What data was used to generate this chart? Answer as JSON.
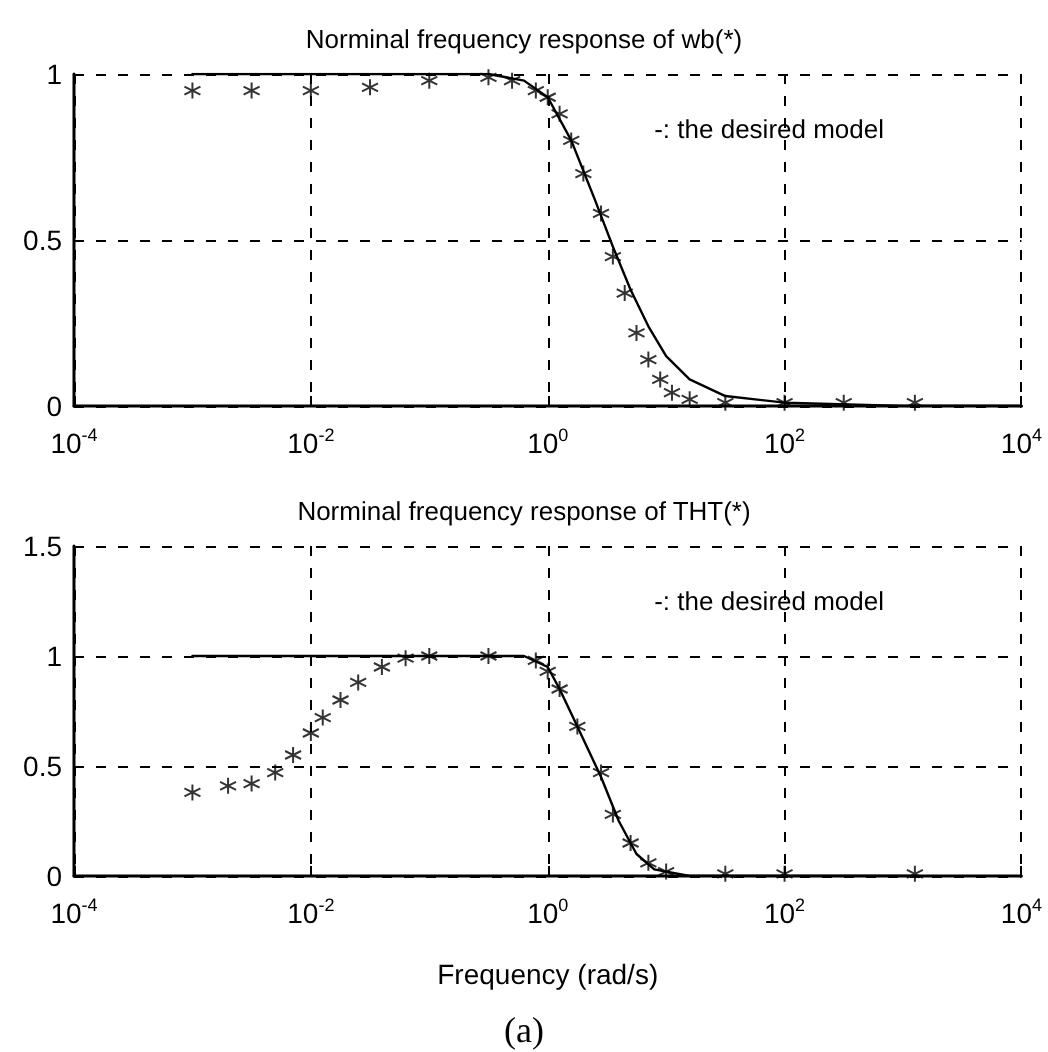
{
  "chart_data": [
    {
      "type": "line",
      "title": "Norminal frequency response of wb(*)",
      "annotations": [
        "-: the desired model"
      ],
      "log": "x",
      "grid": true,
      "xlim": [
        0.0001,
        10000
      ],
      "xticks": [
        {
          "value": 0.0001,
          "label": "10$^{-4}$"
        },
        {
          "value": 0.01,
          "label": "10$^{-2}$"
        },
        {
          "value": 1,
          "label": "10$^{0}$"
        },
        {
          "value": 100,
          "label": "10$^{2}$"
        },
        {
          "value": 10000,
          "label": "10$^{4}$"
        }
      ],
      "ylim": [
        0,
        1
      ],
      "yticks": [
        0,
        0.5,
        1
      ],
      "series": [
        {
          "type": "line",
          "color": "#000000",
          "marker": "none",
          "line_style": "solid",
          "x": [
            0.001,
            0.316,
            0.631,
            1,
            1.58,
            2.51,
            3.55,
            5.01,
            7.08,
            10,
            15.8,
            31.6,
            100,
            1000,
            10000
          ],
          "values": [
            1,
            1,
            0.98,
            0.93,
            0.8,
            0.62,
            0.48,
            0.35,
            0.24,
            0.15,
            0.08,
            0.03,
            0.01,
            0,
            0
          ]
        },
        {
          "type": "scatter",
          "color": "#000000",
          "marker": "cross",
          "x": [
            0.001,
            0.00316,
            0.01,
            0.0316,
            0.1,
            0.316,
            0.5,
            0.794,
            1,
            1.26,
            1.58,
            2,
            2.82,
            3.55,
            4.47,
            5.62,
            7.08,
            8.91,
            11.2,
            15.8,
            31.6,
            100,
            316,
            1260
          ],
          "values": [
            0.95,
            0.95,
            0.95,
            0.96,
            0.98,
            0.99,
            0.98,
            0.95,
            0.93,
            0.88,
            0.8,
            0.7,
            0.58,
            0.45,
            0.34,
            0.22,
            0.14,
            0.08,
            0.04,
            0.02,
            0.01,
            0.01,
            0.01,
            0.01
          ]
        }
      ]
    },
    {
      "type": "line",
      "title": "Norminal frequency response of THT(*)",
      "xlabel": "Frequency (rad/s)",
      "annotations": [
        "-: the desired model",
        "(a)"
      ],
      "log": "x",
      "grid": true,
      "xlim": [
        0.0001,
        10000
      ],
      "xticks": [
        {
          "value": 0.0001,
          "label": "10$^{-4}$"
        },
        {
          "value": 0.01,
          "label": "10$^{-2}$"
        },
        {
          "value": 1,
          "label": "10$^{0}$"
        },
        {
          "value": 100,
          "label": "10$^{2}$"
        },
        {
          "value": 10000,
          "label": "10$^{4}$"
        }
      ],
      "ylim": [
        0,
        1.5
      ],
      "yticks": [
        0,
        0.5,
        1,
        1.5
      ],
      "series": [
        {
          "type": "line",
          "color": "#000000",
          "marker": "none",
          "line_style": "solid",
          "x": [
            0.001,
            0.631,
            1,
            1.26,
            1.78,
            2.82,
            3.98,
            5.62,
            7.94,
            15.8,
            1260
          ],
          "values": [
            1,
            1,
            0.95,
            0.85,
            0.68,
            0.45,
            0.25,
            0.1,
            0.03,
            0,
            0
          ]
        },
        {
          "type": "scatter",
          "color": "#000000",
          "marker": "cross",
          "x": [
            0.001,
            0.002,
            0.00316,
            0.005,
            0.00708,
            0.01,
            0.0126,
            0.0178,
            0.0251,
            0.0398,
            0.0631,
            0.1,
            0.316,
            0.794,
            1,
            1.26,
            1.78,
            2.82,
            3.55,
            5.01,
            7.08,
            10,
            31.6,
            100,
            1260
          ],
          "values": [
            0.38,
            0.41,
            0.42,
            0.47,
            0.55,
            0.65,
            0.72,
            0.8,
            0.88,
            0.95,
            0.99,
            1,
            1,
            0.98,
            0.93,
            0.85,
            0.68,
            0.47,
            0.28,
            0.15,
            0.06,
            0.02,
            0.01,
            0.01,
            0.01
          ]
        }
      ]
    }
  ]
}
